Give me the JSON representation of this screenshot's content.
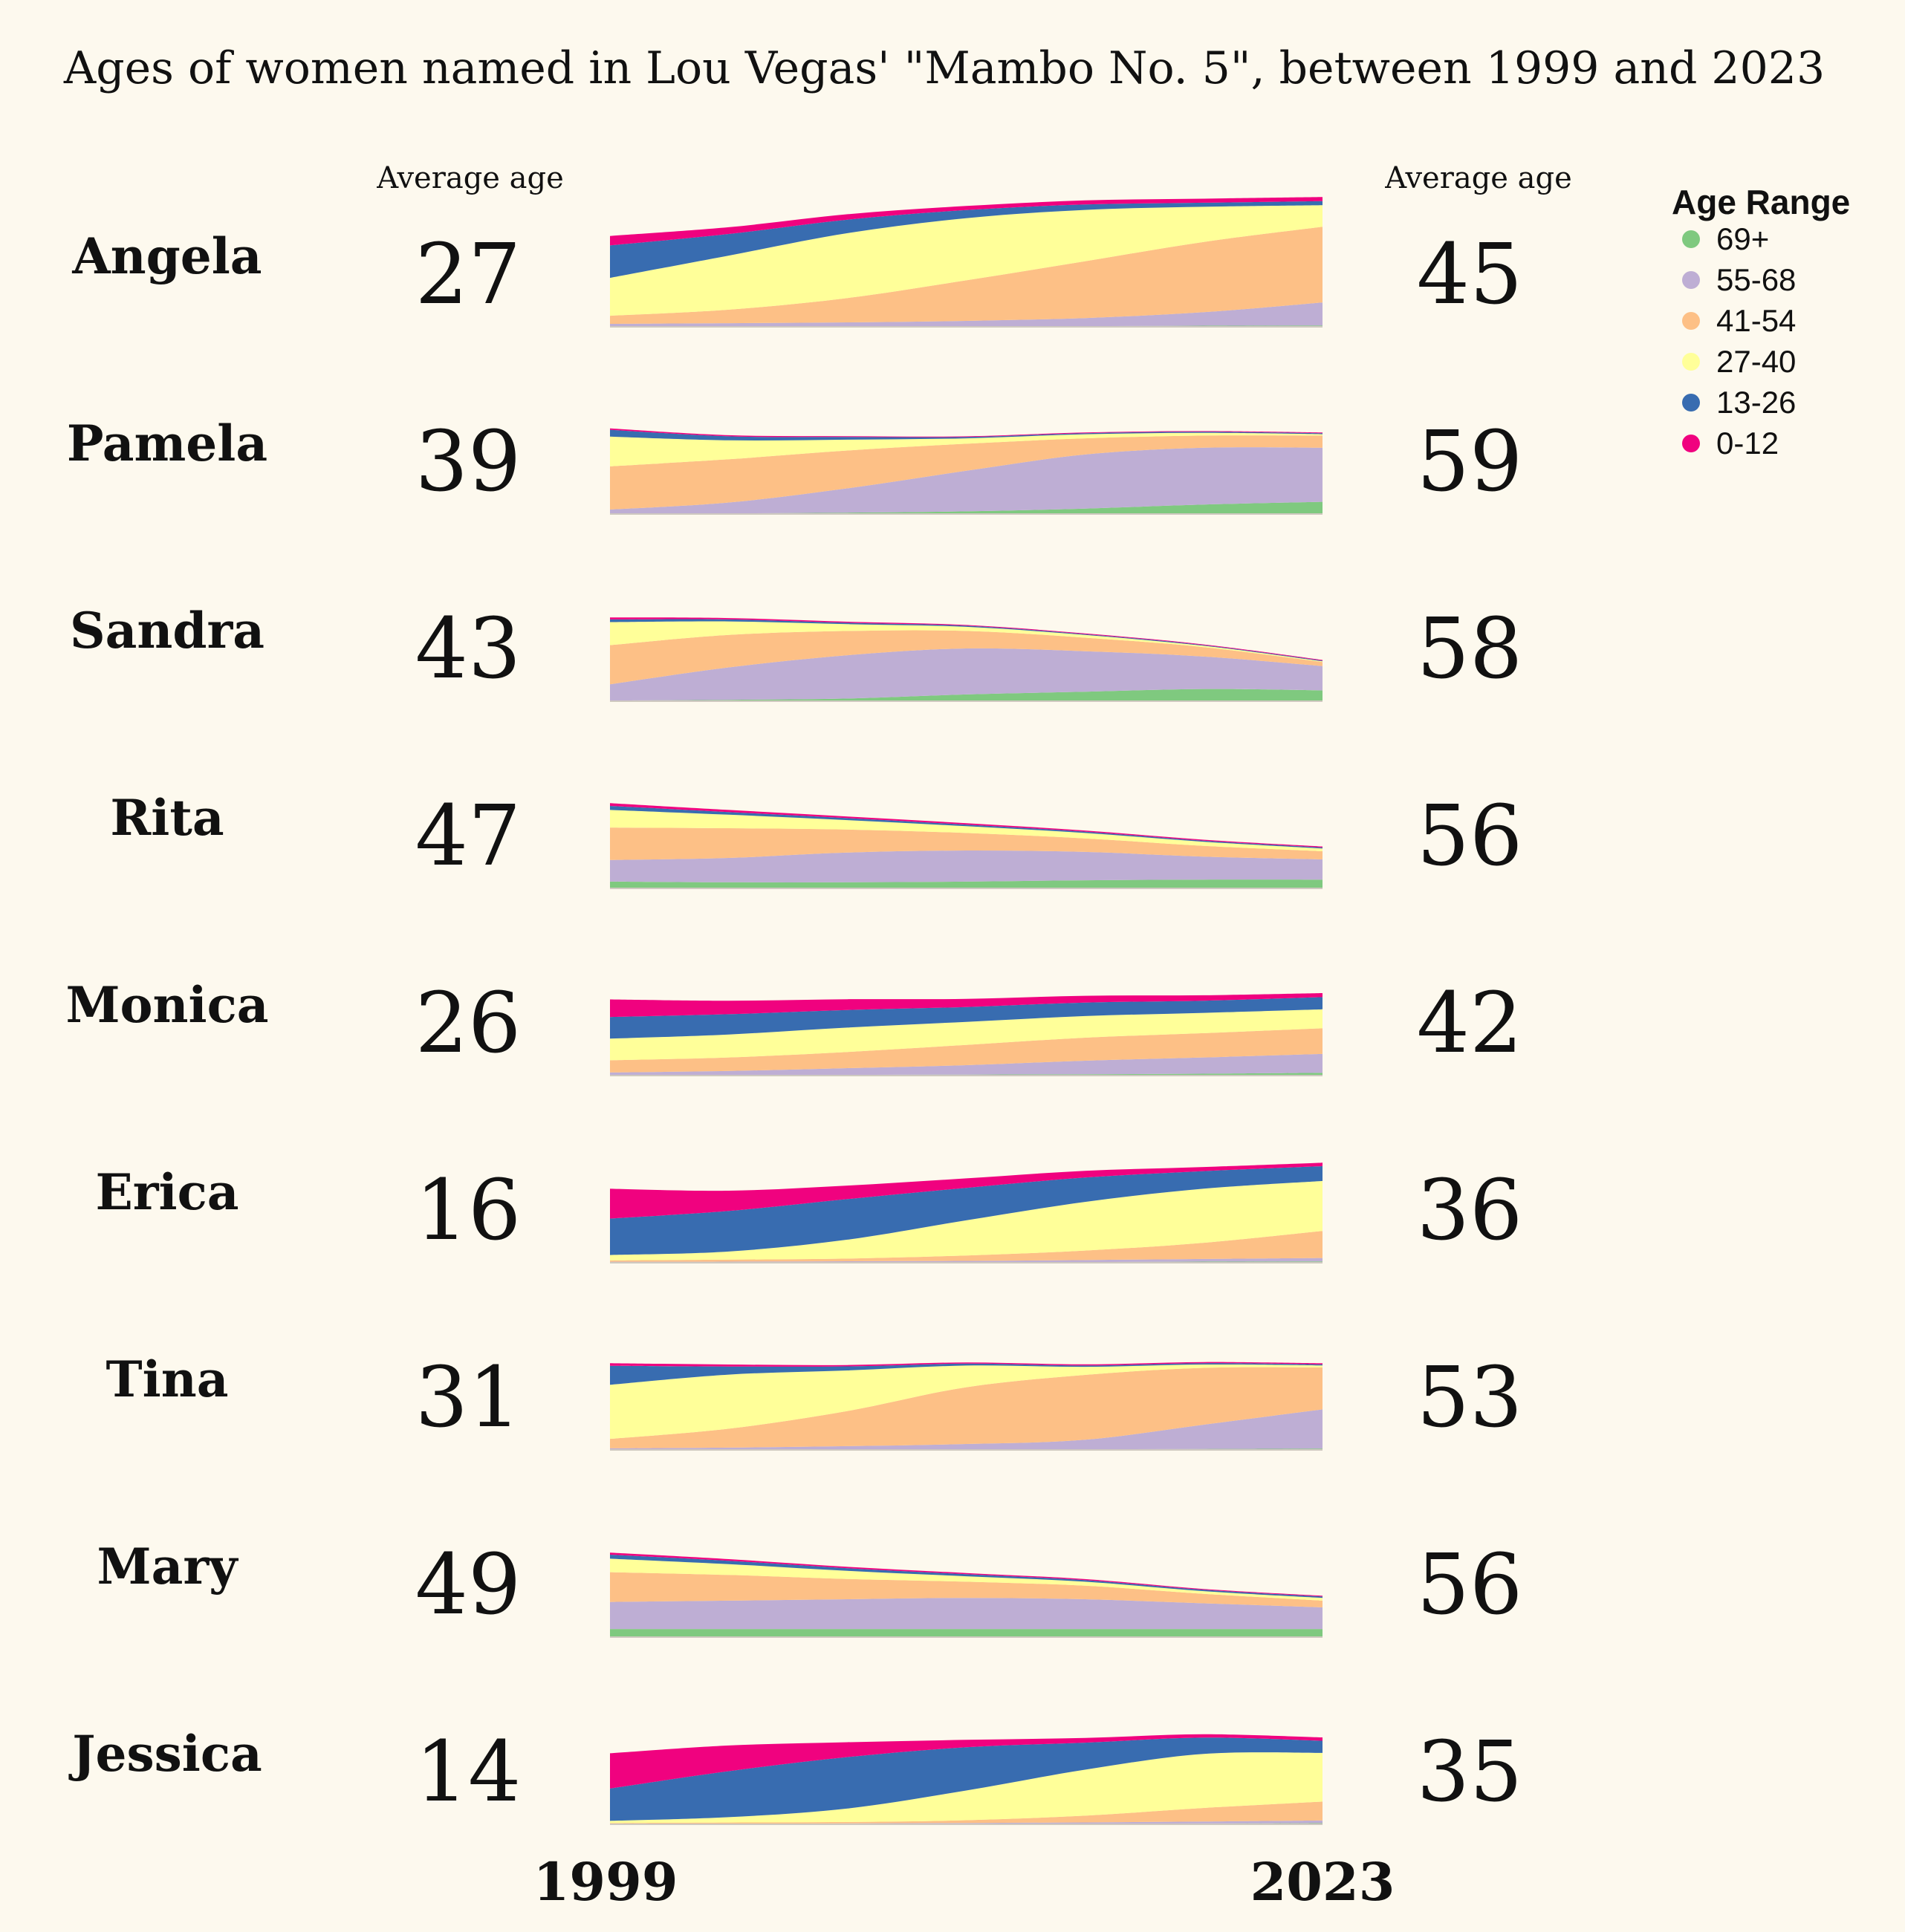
{
  "chart_data": {
    "type": "area",
    "subtype": "small-multiples-stacked-area",
    "title": "Ages of women named in Lou Vegas' \"Mambo No. 5\", between 1999 and 2023",
    "column_header_left": "Average age",
    "column_header_right": "Average age",
    "x": [
      1999,
      2003,
      2007,
      2011,
      2015,
      2019,
      2023
    ],
    "x_labels": {
      "start": "1999",
      "end": "2023"
    },
    "legend": {
      "title": "Age Range",
      "entries": [
        {
          "label": "69+",
          "color": "#7fc97f"
        },
        {
          "label": "55-68",
          "color": "#beaed4"
        },
        {
          "label": "41-54",
          "color": "#fdc086"
        },
        {
          "label": "27-40",
          "color": "#ffff99"
        },
        {
          "label": "13-26",
          "color": "#386cb0"
        },
        {
          "label": "0-12",
          "color": "#f0027f"
        }
      ]
    },
    "series_order_bottom_to_top": [
      "69+",
      "55-68",
      "41-54",
      "27-40",
      "13-26",
      "0-12"
    ],
    "panels": [
      {
        "name": "Angela",
        "avg_start": "27",
        "avg_end": "45",
        "layers": {
          "69+": [
            0.2,
            0.2,
            0.3,
            0.4,
            0.5,
            0.8,
            1.0
          ],
          "55-68": [
            2,
            2.5,
            3,
            4,
            6,
            10,
            17
          ],
          "41-54": [
            6,
            10,
            18,
            30,
            42,
            52,
            56
          ],
          "27-40": [
            28,
            40,
            48,
            46,
            38,
            26,
            16
          ],
          "13-26": [
            24,
            16,
            10,
            6,
            4,
            3,
            3
          ],
          "0-12": [
            7,
            5,
            4,
            3,
            3,
            3,
            3
          ]
        }
      },
      {
        "name": "Pamela",
        "avg_start": "39",
        "avg_end": "59",
        "layers": {
          "69+": [
            0.3,
            0.5,
            1,
            2,
            4,
            7,
            9
          ],
          "55-68": [
            3,
            8,
            18,
            30,
            40,
            42,
            40
          ],
          "41-54": [
            32,
            32,
            28,
            20,
            12,
            9,
            9
          ],
          "27-40": [
            22,
            14,
            8,
            4,
            3,
            2,
            1
          ],
          "13-26": [
            5,
            3,
            2,
            1,
            0.8,
            0.8,
            0.8
          ],
          "0-12": [
            1,
            0.8,
            0.6,
            0.5,
            0.5,
            0.5,
            0.5
          ]
        }
      },
      {
        "name": "Sandra",
        "avg_start": "43",
        "avg_end": "58",
        "layers": {
          "69+": [
            0.5,
            1,
            2,
            5,
            7,
            9,
            8
          ],
          "55-68": [
            12,
            24,
            32,
            34,
            30,
            24,
            18
          ],
          "41-54": [
            29,
            24,
            18,
            13,
            10,
            7,
            3
          ],
          "27-40": [
            17,
            10,
            5,
            3,
            2,
            1,
            0.5
          ],
          "13-26": [
            2,
            1.5,
            1,
            0.8,
            0.6,
            0.5,
            0.5
          ],
          "0-12": [
            1.5,
            1,
            0.8,
            0.6,
            0.5,
            0.5,
            0.5
          ]
        }
      },
      {
        "name": "Rita",
        "avg_start": "47",
        "avg_end": "56",
        "layers": {
          "69+": [
            5,
            4.5,
            4.5,
            5,
            6,
            6.5,
            6.5
          ],
          "55-68": [
            16,
            18,
            22,
            23,
            21,
            17,
            15
          ],
          "41-54": [
            24,
            22,
            17,
            13,
            10,
            8,
            6
          ],
          "27-40": [
            13,
            10,
            7,
            5,
            4,
            3,
            2
          ],
          "13-26": [
            3,
            2,
            1.5,
            1.2,
            1,
            0.8,
            0.8
          ],
          "0-12": [
            2,
            1.5,
            1.2,
            1,
            0.8,
            0.7,
            0.7
          ]
        }
      },
      {
        "name": "Monica",
        "avg_start": "26",
        "avg_end": "42",
        "layers": {
          "69+": [
            0.3,
            0.4,
            0.5,
            0.7,
            1,
            1.4,
            2
          ],
          "55-68": [
            2,
            3,
            5,
            7,
            10,
            12,
            14
          ],
          "41-54": [
            9,
            10,
            12,
            15,
            17,
            18,
            19
          ],
          "27-40": [
            16,
            17,
            18,
            17,
            16,
            15,
            14
          ],
          "13-26": [
            16,
            15,
            13,
            11,
            10,
            9,
            9
          ],
          "0-12": [
            13,
            10,
            8,
            6,
            5,
            4,
            3
          ]
        }
      },
      {
        "name": "Erica",
        "avg_start": "16",
        "avg_end": "36",
        "layers": {
          "69+": [
            0.2,
            0.2,
            0.3,
            0.4,
            0.5,
            0.8,
            1
          ],
          "55-68": [
            0.5,
            0.6,
            0.8,
            1,
            1.5,
            2,
            2.5
          ],
          "41-54": [
            1,
            1.5,
            2,
            4,
            7,
            12,
            20
          ],
          "27-40": [
            4,
            6,
            14,
            26,
            36,
            40,
            37
          ],
          "13-26": [
            27,
            30,
            30,
            24,
            18,
            13,
            11
          ],
          "0-12": [
            22,
            15,
            10,
            7,
            5,
            3,
            2.5
          ]
        }
      },
      {
        "name": "Tina",
        "avg_start": "31",
        "avg_end": "53",
        "layers": {
          "69+": [
            0.2,
            0.2,
            0.3,
            0.4,
            0.5,
            0.7,
            1
          ],
          "55-68": [
            1,
            1.5,
            2.5,
            4,
            7,
            18,
            29
          ],
          "41-54": [
            7,
            14,
            26,
            42,
            48,
            42,
            31
          ],
          "27-40": [
            40,
            40,
            30,
            16,
            6,
            2.5,
            1.5
          ],
          "13-26": [
            14,
            6,
            3,
            1.5,
            1,
            1,
            0.8
          ],
          "0-12": [
            2,
            1.5,
            1,
            0.8,
            0.8,
            0.8,
            0.8
          ]
        }
      },
      {
        "name": "Mary",
        "avg_start": "49",
        "avg_end": "56",
        "layers": {
          "69+": [
            6,
            6,
            6,
            6,
            6,
            6,
            6
          ],
          "55-68": [
            20,
            21,
            22,
            23,
            22,
            19,
            16
          ],
          "41-54": [
            22,
            19,
            15,
            12,
            10,
            7,
            5
          ],
          "27-40": [
            10,
            8,
            6,
            4,
            3,
            2,
            2
          ],
          "13-26": [
            3,
            2.5,
            2,
            1.6,
            1.2,
            1,
            1
          ],
          "0-12": [
            1.5,
            1.2,
            1,
            0.8,
            0.7,
            0.6,
            0.6
          ]
        }
      },
      {
        "name": "Jessica",
        "avg_start": "14",
        "avg_end": "35",
        "layers": {
          "69+": [
            0.1,
            0.1,
            0.2,
            0.3,
            0.4,
            0.6,
            0.8
          ],
          "55-68": [
            0.3,
            0.4,
            0.5,
            0.7,
            1,
            1.5,
            2
          ],
          "41-54": [
            0.6,
            0.8,
            1,
            2,
            5,
            10,
            14
          ],
          "27-40": [
            1.5,
            4,
            10,
            22,
            34,
            40,
            36
          ],
          "13-26": [
            24,
            34,
            38,
            32,
            20,
            12,
            9
          ],
          "0-12": [
            26,
            19,
            11,
            5.5,
            3.5,
            2.5,
            2.5
          ]
        }
      }
    ]
  }
}
